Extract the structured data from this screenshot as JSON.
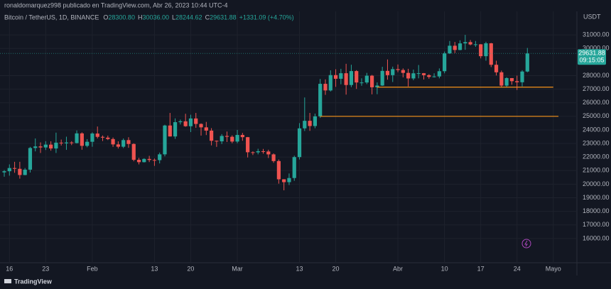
{
  "chart_data": {
    "type": "candlestick",
    "title": "ronaldomarquez998 publicado en TradingView.com, Abr 26, 2023 10:44 UTC-4",
    "symbol": "Bitcoin / TetherUS, 1D, BINANCE",
    "ohlc_legend": [
      {
        "label": "O",
        "value": "28300.80"
      },
      {
        "label": "H",
        "value": "30036.00"
      },
      {
        "label": "L",
        "value": "28244.62"
      },
      {
        "label": "C",
        "value": "29631.88"
      }
    ],
    "change": "+1331.09 (+4.70%)",
    "currency": "USDT",
    "last_price_label": "29631.88",
    "countdown": "09:15:05",
    "footer": "TradingView",
    "up_color": "#26a69a",
    "down_color": "#ef5350",
    "grid": true,
    "categories": [
      null,
      "16",
      null,
      null,
      null,
      null,
      null,
      null,
      "23",
      null,
      null,
      null,
      null,
      null,
      null,
      null,
      null,
      "Feb",
      null,
      null,
      null,
      null,
      null,
      null,
      null,
      null,
      null,
      null,
      null,
      "13",
      null,
      null,
      null,
      null,
      null,
      null,
      "20",
      null,
      null,
      null,
      null,
      null,
      null,
      null,
      null,
      "Mar",
      null,
      null,
      null,
      null,
      null,
      null,
      null,
      null,
      null,
      null,
      null,
      "13",
      null,
      null,
      null,
      null,
      null,
      null,
      "20",
      null,
      null,
      null,
      null,
      null,
      null,
      null,
      null,
      null,
      null,
      null,
      "Abr",
      null,
      null,
      null,
      null,
      null,
      null,
      null,
      null,
      "10",
      null,
      null,
      null,
      null,
      null,
      null,
      "17",
      null,
      null,
      null,
      null,
      null,
      null,
      "24",
      null,
      null,
      null,
      null,
      null,
      null,
      "Mayo"
    ],
    "open": [
      20871,
      20955,
      21190,
      21133,
      20677,
      21071,
      22667,
      22783,
      22707,
      22917,
      22632,
      23060,
      23009,
      23074,
      23031,
      23743,
      22826,
      23125,
      23732,
      23488,
      23431,
      23326,
      22932,
      22762,
      23249,
      22963,
      21796,
      21625,
      21862,
      21783,
      21773,
      22199,
      24324,
      23517,
      24570,
      24632,
      24271,
      24844,
      24439,
      24188,
      23947,
      23199,
      23157,
      23554,
      23492,
      23141,
      23629,
      23465,
      22354,
      22346,
      22430,
      22410,
      22197,
      21705,
      20362,
      20150,
      20455,
      21997,
      24113,
      24670,
      24285,
      24998,
      27395,
      26907,
      28038,
      27767,
      28175,
      27307,
      28333,
      27493,
      27494,
      27994,
      27139,
      27268,
      28348,
      28033,
      28478,
      28411,
      28199,
      27790,
      28169,
      28175,
      28033,
      27906,
      27938,
      28323,
      29637,
      30200,
      29888,
      30373,
      30467,
      30295,
      30305,
      29430,
      30380,
      28797,
      28243,
      27262,
      27816,
      27590,
      27510,
      28300.8,
      null,
      null,
      null,
      null,
      null
    ],
    "high": [
      21040,
      21460,
      21650,
      21650,
      21190,
      22750,
      23370,
      23080,
      23170,
      23160,
      23800,
      23290,
      23500,
      23170,
      23960,
      23820,
      23320,
      23820,
      24250,
      23590,
      23580,
      23440,
      23160,
      23370,
      23460,
      23010,
      21940,
      21910,
      22090,
      21890,
      22330,
      24380,
      25250,
      24850,
      24760,
      25190,
      25120,
      25250,
      24480,
      24590,
      24130,
      23220,
      23690,
      23880,
      23600,
      24000,
      23780,
      23480,
      22420,
      22610,
      22600,
      22540,
      22270,
      21820,
      20370,
      20790,
      22100,
      24500,
      26390,
      25250,
      25200,
      27750,
      27720,
      28390,
      28470,
      28500,
      28870,
      28800,
      28400,
      27800,
      28200,
      28050,
      27500,
      28650,
      29190,
      28660,
      28820,
      28530,
      28500,
      28440,
      28780,
      28190,
      28100,
      28170,
      28530,
      29770,
      30550,
      30480,
      30600,
      31000,
      30620,
      30550,
      30320,
      30490,
      30410,
      29100,
      28370,
      27880,
      27820,
      28000,
      28400,
      30036,
      null,
      null,
      null,
      null,
      null
    ],
    "low": [
      20550,
      20630,
      20840,
      20410,
      20660,
      20860,
      22420,
      22300,
      22520,
      22470,
      22300,
      22850,
      22530,
      22880,
      23000,
      22540,
      22720,
      22760,
      23370,
      23180,
      23250,
      22750,
      22630,
      22660,
      22680,
      21690,
      21460,
      21600,
      21630,
      21350,
      21530,
      22050,
      23510,
      23340,
      24400,
      24230,
      23840,
      24150,
      23580,
      23620,
      22860,
      22750,
      22960,
      23110,
      23020,
      23020,
      23200,
      21970,
      22150,
      22200,
      22250,
      21930,
      21580,
      20040,
      19550,
      19940,
      20250,
      21820,
      23920,
      23930,
      24120,
      24880,
      26580,
      26830,
      27170,
      27360,
      26600,
      27150,
      27020,
      27250,
      27370,
      26620,
      26630,
      27240,
      27700,
      27530,
      28250,
      27870,
      27200,
      27660,
      27800,
      27710,
      27770,
      27860,
      27800,
      28170,
      29590,
      29660,
      29870,
      29900,
      30230,
      30120,
      29270,
      29100,
      28630,
      28010,
      27130,
      27130,
      27330,
      26940,
      27200,
      28244.62,
      null,
      null,
      null,
      null,
      null
    ],
    "close": [
      20955,
      21190,
      21133,
      20677,
      21071,
      22667,
      22783,
      22707,
      22917,
      22632,
      23060,
      23009,
      23074,
      23031,
      23743,
      22826,
      23125,
      23732,
      23488,
      23431,
      23326,
      22932,
      22762,
      23249,
      22963,
      21796,
      21625,
      21862,
      21783,
      21773,
      22199,
      24324,
      23517,
      24570,
      24632,
      24271,
      24844,
      24439,
      24188,
      23947,
      23199,
      23157,
      23554,
      23492,
      23141,
      23629,
      23465,
      22354,
      22346,
      22430,
      22410,
      22197,
      21705,
      20362,
      20150,
      20455,
      21997,
      24113,
      24670,
      24285,
      24998,
      27395,
      26907,
      28038,
      27767,
      28175,
      27307,
      28333,
      27493,
      27494,
      27994,
      27139,
      27268,
      28348,
      28033,
      28478,
      28411,
      28199,
      27790,
      28169,
      28175,
      28033,
      27906,
      27938,
      28323,
      29637,
      30200,
      29888,
      30373,
      30467,
      30295,
      30305,
      29430,
      30380,
      28797,
      28243,
      27262,
      27816,
      27590,
      27510,
      28300,
      29631.88,
      null,
      null,
      null,
      null,
      null
    ],
    "hlines": [
      {
        "value": 27150,
        "color": "#f7931a",
        "start": 72,
        "end": 106
      },
      {
        "value": 25000,
        "color": "#f7931a",
        "start": 61,
        "end": 107
      }
    ],
    "ylim": [
      15000,
      32000
    ],
    "yticks": [
      {
        "value": 16000,
        "label": "16000.00"
      },
      {
        "value": 17000,
        "label": "17000.00"
      },
      {
        "value": 18000,
        "label": "18000.00"
      },
      {
        "value": 19000,
        "label": "19000.00"
      },
      {
        "value": 20000,
        "label": "20000.00"
      },
      {
        "value": 21000,
        "label": "21000.00"
      },
      {
        "value": 22000,
        "label": "22000.00"
      },
      {
        "value": 23000,
        "label": "23000.00"
      },
      {
        "value": 24000,
        "label": "24000.00"
      },
      {
        "value": 25000,
        "label": "25000.00"
      },
      {
        "value": 26000,
        "label": "26000.00"
      },
      {
        "value": 27000,
        "label": "27000.00"
      },
      {
        "value": 28000,
        "label": "28000.00"
      },
      {
        "value": 30000,
        "label": "30000.00"
      },
      {
        "value": 31000,
        "label": "31000.00"
      }
    ]
  }
}
